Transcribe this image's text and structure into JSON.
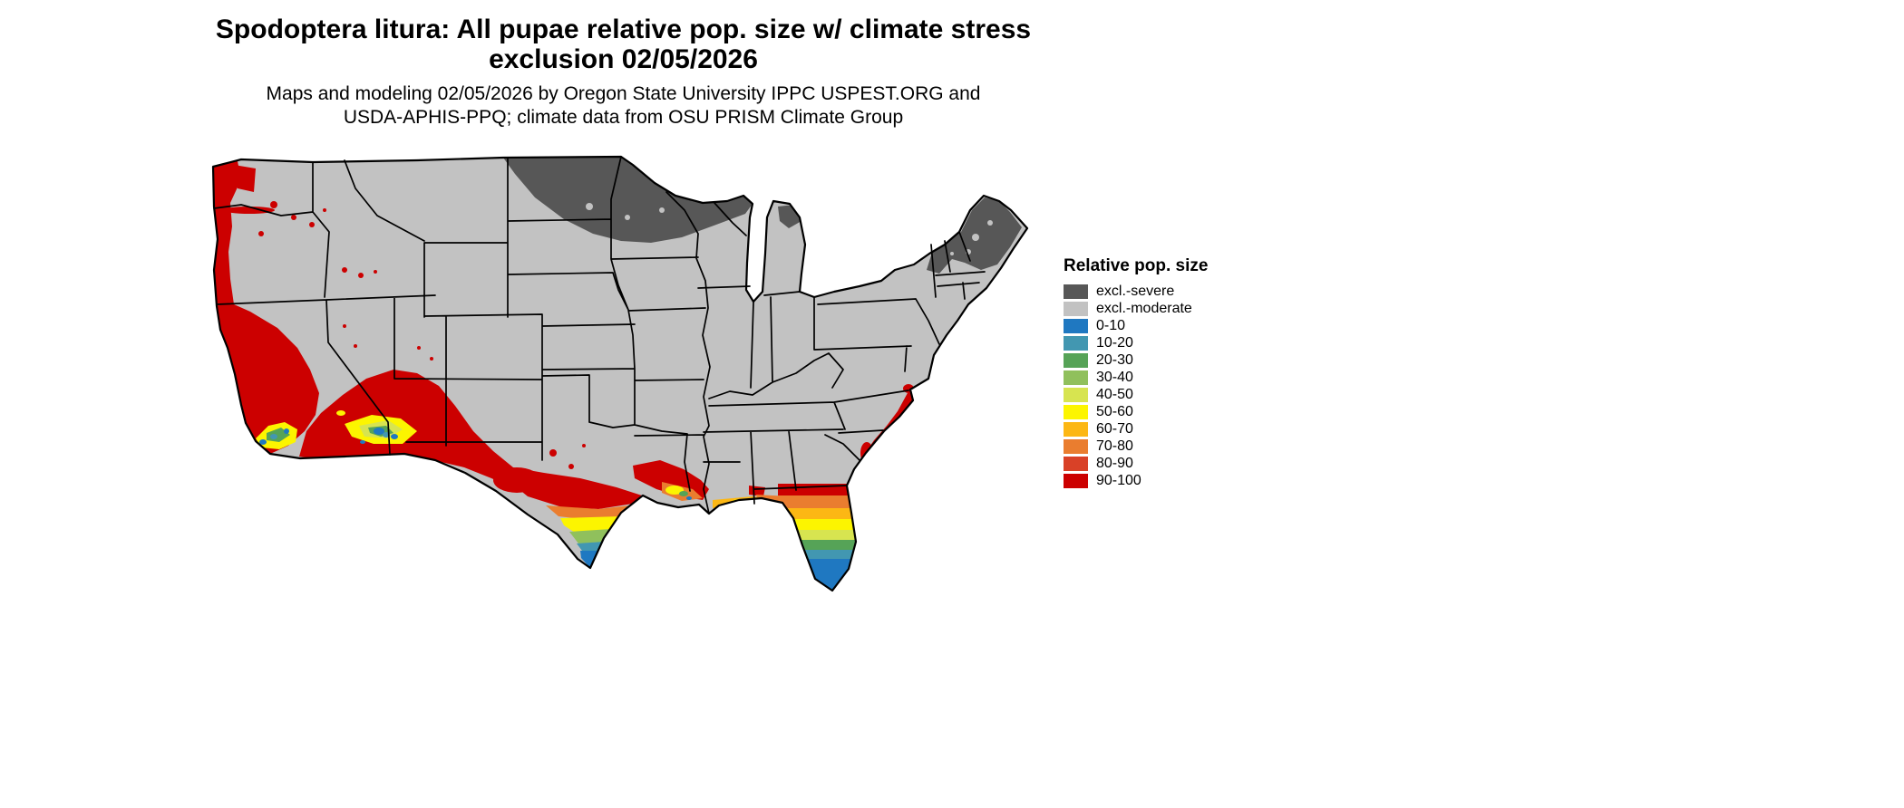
{
  "title": {
    "line1": "Spodoptera litura: All pupae relative pop. size w/ climate stress",
    "line2": "exclusion 02/05/2026"
  },
  "subtitle": {
    "line1": "Maps and modeling 02/05/2026 by Oregon State University IPPC USPEST.ORG and",
    "line2": "USDA-APHIS-PPQ; climate data from OSU PRISM Climate Group"
  },
  "legend": {
    "title": "Relative pop. size",
    "items": [
      {
        "label": "excl.-severe",
        "color": "#575757"
      },
      {
        "label": "excl.-moderate",
        "color": "#c2c2c2"
      },
      {
        "label": "0-10",
        "color": "#1f78c1"
      },
      {
        "label": "10-20",
        "color": "#4297b1"
      },
      {
        "label": "20-30",
        "color": "#56a357"
      },
      {
        "label": "30-40",
        "color": "#90c05c"
      },
      {
        "label": "40-50",
        "color": "#d7e450"
      },
      {
        "label": "50-60",
        "color": "#fcf500"
      },
      {
        "label": "60-70",
        "color": "#fcb714"
      },
      {
        "label": "70-80",
        "color": "#ea7d2f"
      },
      {
        "label": "80-90",
        "color": "#d94127"
      },
      {
        "label": "90-100",
        "color": "#cc0000"
      }
    ]
  },
  "map": {
    "area": "contiguous United States",
    "base_class": "excl.-moderate",
    "depicted_regions": [
      {
        "name": "northern-minnesota-wisconsin-upper-michigan",
        "class": "excl.-severe"
      },
      {
        "name": "northern-new-england",
        "class": "excl.-severe"
      },
      {
        "name": "pacific-coast-and-california",
        "class": "90-100"
      },
      {
        "name": "southern-arizona-new-mexico",
        "class": "90-100 with 0-60 pockets"
      },
      {
        "name": "rio-grande-west-texas",
        "class": "90-100"
      },
      {
        "name": "south-texas",
        "class": "gradient 90-100 north to 0-10 at tip"
      },
      {
        "name": "gulf-coast-louisiana-mississippi-alabama",
        "class": "50-100 patches"
      },
      {
        "name": "florida-peninsula",
        "class": "gradient 90-100 north to 0-10 south"
      },
      {
        "name": "southeast-atlantic-coast",
        "class": "90-100"
      }
    ]
  }
}
